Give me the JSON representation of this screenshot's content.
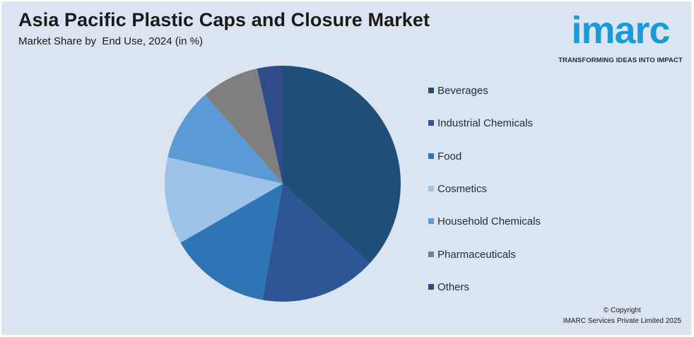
{
  "header": {
    "title": "Asia Pacific Plastic Caps and Closure Market",
    "subtitle": "Market Share by  End Use, 2024 (in %)"
  },
  "logo": {
    "word": "imarc",
    "tagline": "TRANSFORMING IDEAS INTO IMPACT"
  },
  "footer": {
    "copyright_line1": "© Copyright",
    "copyright_line2": "IMARC Services Private Limited 2025"
  },
  "colors": {
    "background": "#dbe4f1",
    "brand": "#1a9ad6"
  },
  "chart_data": {
    "type": "pie",
    "title": "Asia Pacific Plastic Caps and Closure Market",
    "subtitle": "Market Share by  End Use, 2024 (in %)",
    "start_angle_deg": 0,
    "direction": "clockwise",
    "legend_position": "right",
    "slices": [
      {
        "label": "Beverages",
        "value": 37,
        "color": "#1f4e79"
      },
      {
        "label": "Industrial Chemicals",
        "value": 16,
        "color": "#2e5596"
      },
      {
        "label": "Food",
        "value": 14,
        "color": "#2e75b6"
      },
      {
        "label": "Cosmetics",
        "value": 12,
        "color": "#9dc3e6"
      },
      {
        "label": "Household Chemicals",
        "value": 10,
        "color": "#5b9bd5"
      },
      {
        "label": "Pharmaceuticals",
        "value": 8,
        "color": "#7f7f7f"
      },
      {
        "label": "Others",
        "value": 3.5,
        "color": "#2f4b8a"
      }
    ]
  }
}
